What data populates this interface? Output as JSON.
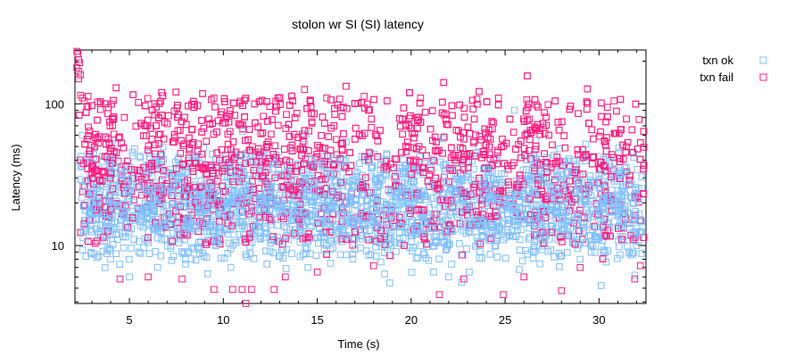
{
  "chart_data": {
    "type": "scatter",
    "title": "stolon wr SI (SI)  latency",
    "xlabel": "Time (s)",
    "ylabel": "Latency (ms)",
    "y_scale": "log",
    "xlim": [
      2.1,
      32.5
    ],
    "ylim": [
      3.9,
      240
    ],
    "x_ticks": [
      5,
      10,
      15,
      20,
      25,
      30
    ],
    "x_tick_labels": [
      "5",
      "10",
      "15",
      "20",
      "25",
      "30"
    ],
    "y_ticks": [
      10,
      100
    ],
    "y_tick_labels": [
      "10",
      "100"
    ],
    "legend_position": "top-right outside",
    "series": [
      {
        "name": "txn ok",
        "color": "#7fbfff",
        "marker": "open-square",
        "x_range": [
          2.4,
          32.3
        ],
        "typical_latency_range": [
          8,
          45
        ],
        "median_latency": 19,
        "points": [
          [
            2.5,
            60
          ],
          [
            2.7,
            40
          ],
          [
            3.0,
            35
          ],
          [
            3.4,
            22
          ],
          [
            4.0,
            8
          ],
          [
            4.3,
            12
          ],
          [
            5.0,
            6
          ],
          [
            5.5,
            9
          ],
          [
            6.5,
            7
          ],
          [
            8.0,
            20
          ],
          [
            10.4,
            7
          ],
          [
            12.0,
            18
          ],
          [
            14.5,
            7
          ],
          [
            18.0,
            22
          ],
          [
            20.5,
            10
          ],
          [
            22.0,
            6
          ],
          [
            24.5,
            10
          ],
          [
            25.5,
            90
          ],
          [
            27.0,
            18
          ],
          [
            29.0,
            8
          ],
          [
            30.5,
            20
          ],
          [
            32.0,
            10
          ]
        ]
      },
      {
        "name": "txn fail",
        "color": "#ff1f7f",
        "marker": "open-square",
        "x_range": [
          2.3,
          32.4
        ],
        "typical_latency_range": [
          10,
          110
        ],
        "median_latency": 38,
        "points": [
          [
            2.2,
            235
          ],
          [
            2.25,
            225
          ],
          [
            2.3,
            205
          ],
          [
            2.35,
            195
          ],
          [
            2.2,
            180
          ],
          [
            2.3,
            170
          ],
          [
            2.4,
            160
          ],
          [
            2.3,
            150
          ],
          [
            2.4,
            115
          ],
          [
            2.5,
            110
          ],
          [
            2.6,
            105
          ],
          [
            2.8,
            95
          ],
          [
            3.3,
            103
          ],
          [
            9.5,
            110
          ],
          [
            11.0,
            4.9
          ],
          [
            11.2,
            3.9
          ],
          [
            11.5,
            4.9
          ],
          [
            10.5,
            4.9
          ],
          [
            9.5,
            4.9
          ],
          [
            12.7,
            4.9
          ],
          [
            15.5,
            110
          ],
          [
            16.2,
            108
          ],
          [
            17.5,
            113
          ],
          [
            20.5,
            110
          ],
          [
            21.5,
            4.5
          ],
          [
            24.9,
            4.5
          ],
          [
            23.5,
            108
          ],
          [
            28.0,
            4.8
          ],
          [
            30.8,
            105
          ],
          [
            31.9,
            5.8
          ],
          [
            4.5,
            5.8
          ],
          [
            6.0,
            6.0
          ],
          [
            7.8,
            5.8
          ],
          [
            13.3,
            6.0
          ],
          [
            15.0,
            6.5
          ],
          [
            18.0,
            7.2
          ],
          [
            22.8,
            5.8
          ],
          [
            26.0,
            6.0
          ],
          [
            29.0,
            7.0
          ],
          [
            32.2,
            7.2
          ]
        ]
      }
    ]
  }
}
